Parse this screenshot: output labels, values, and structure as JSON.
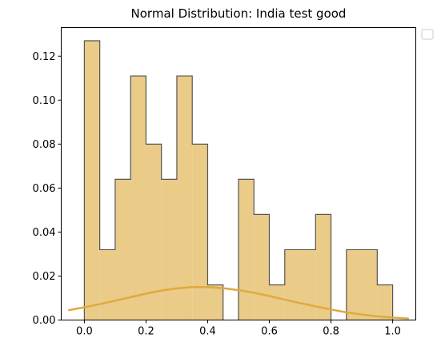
{
  "chart_data": {
    "type": "bar",
    "title": "Normal Distribution: India test good",
    "xlabel": "",
    "ylabel": "",
    "xlim": [
      -0.075,
      1.075
    ],
    "ylim": [
      0,
      0.133
    ],
    "x_ticks": [
      "0.0",
      "0.2",
      "0.4",
      "0.6",
      "0.8",
      "1.0"
    ],
    "y_ticks": [
      "0.00",
      "0.02",
      "0.04",
      "0.06",
      "0.08",
      "0.10",
      "0.12"
    ],
    "bin_edges": [
      0.0,
      0.05,
      0.1,
      0.15,
      0.2,
      0.25,
      0.3,
      0.35,
      0.4,
      0.45,
      0.5,
      0.55,
      0.6,
      0.65,
      0.7,
      0.75,
      0.8,
      0.85,
      0.9,
      0.95,
      1.0
    ],
    "values": [
      0.127,
      0.032,
      0.064,
      0.111,
      0.08,
      0.064,
      0.111,
      0.08,
      0.016,
      0.0,
      0.064,
      0.048,
      0.016,
      0.032,
      0.032,
      0.048,
      0.0,
      0.032,
      0.032,
      0.016
    ],
    "curve": {
      "x": [
        -0.05,
        0.0,
        0.05,
        0.1,
        0.15,
        0.2,
        0.25,
        0.3,
        0.35,
        0.4,
        0.45,
        0.5,
        0.55,
        0.6,
        0.65,
        0.7,
        0.75,
        0.8,
        0.85,
        0.9,
        0.95,
        1.0,
        1.05
      ],
      "y": [
        0.0045,
        0.0058,
        0.0072,
        0.0088,
        0.0104,
        0.012,
        0.0134,
        0.0144,
        0.015,
        0.015,
        0.0145,
        0.0136,
        0.0124,
        0.0109,
        0.0093,
        0.0077,
        0.0062,
        0.0048,
        0.0035,
        0.0025,
        0.0017,
        0.0011,
        0.0007
      ]
    },
    "legend": "top-right",
    "grid": false,
    "colors": {
      "bar_fill": "#eacb88",
      "bar_edge": "#555555",
      "curve": "#e0aa3e"
    }
  }
}
